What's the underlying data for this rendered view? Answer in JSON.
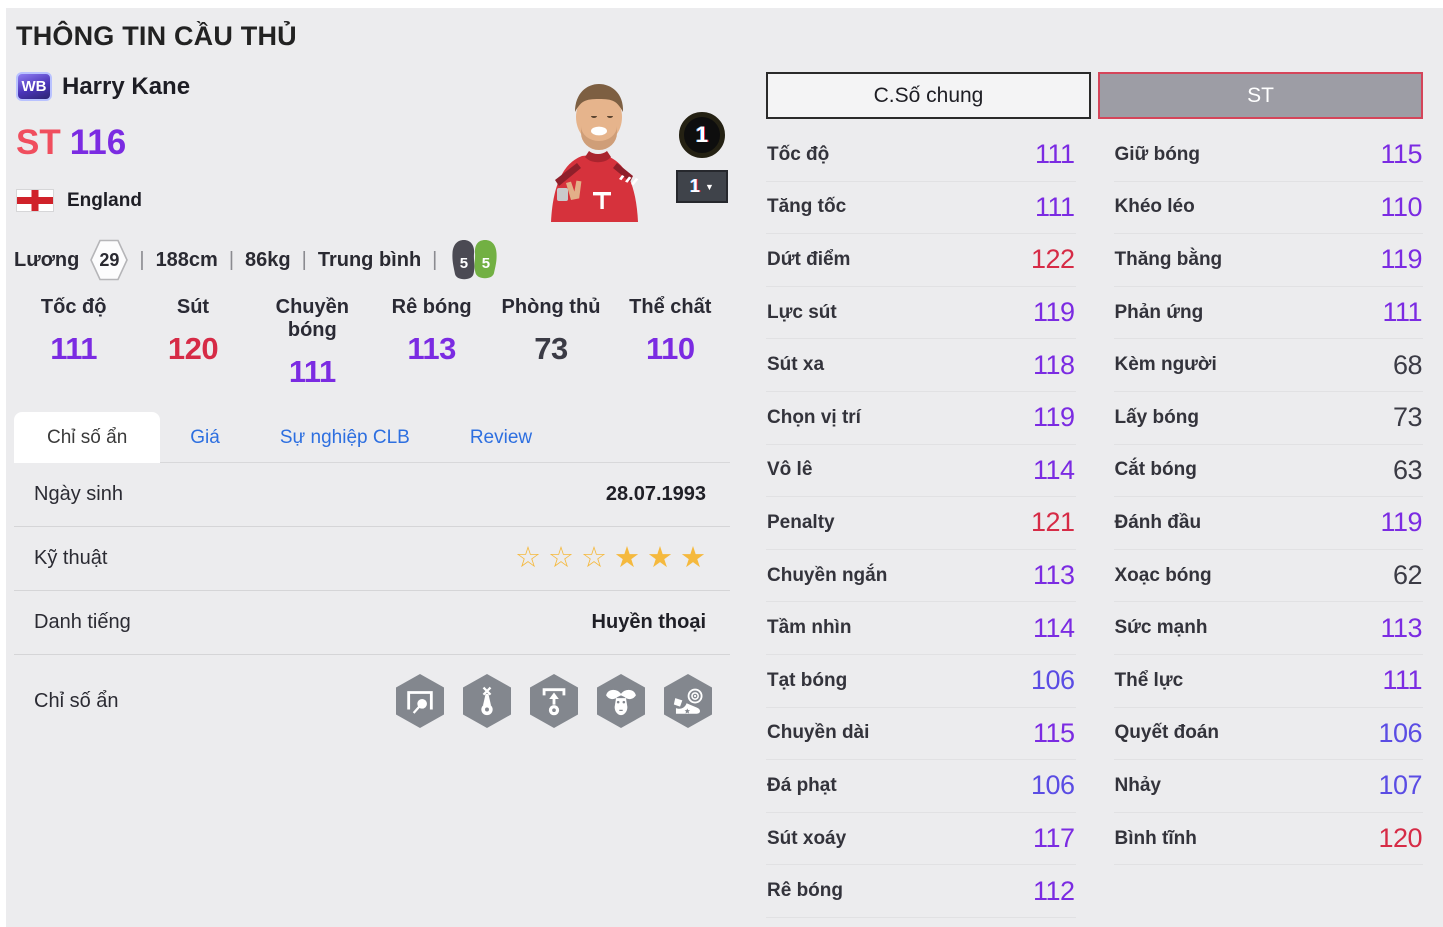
{
  "page": {
    "title": "THÔNG TIN CẦU THỦ"
  },
  "meta": {
    "separator": "|",
    "caret": "▼"
  },
  "colors": {
    "purple": "#7b2be2",
    "blue": "#5a4ce4",
    "red": "#d62b46",
    "dark": "#3b3b45"
  },
  "player": {
    "badge": "WB",
    "name": "Harry Kane",
    "position": "ST",
    "ovr": "116",
    "nation": "England",
    "salary_label": "Lương",
    "salary": "29",
    "height": "188cm",
    "weight": "86kg",
    "body_type": "Trung bình",
    "foot_left": "5",
    "foot_right": "5",
    "level": "1",
    "level_select": "1"
  },
  "summary_stats": [
    {
      "label": "Tốc độ",
      "value": "111",
      "color": "purple"
    },
    {
      "label": "Sút",
      "value": "120",
      "color": "red"
    },
    {
      "label": "Chuyền bóng",
      "value": "111",
      "color": "purple"
    },
    {
      "label": "Rê bóng",
      "value": "113",
      "color": "purple"
    },
    {
      "label": "Phòng thủ",
      "value": "73",
      "color": "dark"
    },
    {
      "label": "Thể chất",
      "value": "110",
      "color": "purple"
    }
  ],
  "tabs": [
    {
      "label": "Chỉ số ẩn",
      "active": true
    },
    {
      "label": "Giá"
    },
    {
      "label": "Sự nghiệp CLB"
    },
    {
      "label": "Review"
    }
  ],
  "info": {
    "dob_label": "Ngày sinh",
    "dob": "28.07.1993",
    "skill_label": "Kỹ thuật",
    "skill_stars": {
      "outline": 3,
      "filled": 3
    },
    "fame_label": "Danh tiếng",
    "fame": "Huyền thoại",
    "hidden_label": "Chỉ số ẩn",
    "hidden_icons": [
      "goal-ball-icon",
      "ball-toss-icon",
      "ball-lift-icon",
      "buffalo-icon",
      "boot-target-icon"
    ]
  },
  "panel": {
    "tab_general": "C.Số chung",
    "tab_position": "ST",
    "left_stats": [
      {
        "label": "Tốc độ",
        "value": "111",
        "color": "purple"
      },
      {
        "label": "Tăng tốc",
        "value": "111",
        "color": "purple"
      },
      {
        "label": "Dứt điểm",
        "value": "122",
        "color": "red"
      },
      {
        "label": "Lực sút",
        "value": "119",
        "color": "purple"
      },
      {
        "label": "Sút xa",
        "value": "118",
        "color": "purple"
      },
      {
        "label": "Chọn vị trí",
        "value": "119",
        "color": "purple"
      },
      {
        "label": "Vô lê",
        "value": "114",
        "color": "purple"
      },
      {
        "label": "Penalty",
        "value": "121",
        "color": "red"
      },
      {
        "label": "Chuyền ngắn",
        "value": "113",
        "color": "purple"
      },
      {
        "label": "Tầm nhìn",
        "value": "114",
        "color": "purple"
      },
      {
        "label": "Tạt bóng",
        "value": "106",
        "color": "blue"
      },
      {
        "label": "Chuyền dài",
        "value": "115",
        "color": "purple"
      },
      {
        "label": "Đá phạt",
        "value": "106",
        "color": "blue"
      },
      {
        "label": "Sút xoáy",
        "value": "117",
        "color": "purple"
      },
      {
        "label": "Rê bóng",
        "value": "112",
        "color": "purple"
      }
    ],
    "right_stats": [
      {
        "label": "Giữ bóng",
        "value": "115",
        "color": "purple"
      },
      {
        "label": "Khéo léo",
        "value": "110",
        "color": "purple"
      },
      {
        "label": "Thăng bằng",
        "value": "119",
        "color": "purple"
      },
      {
        "label": "Phản ứng",
        "value": "111",
        "color": "purple"
      },
      {
        "label": "Kèm người",
        "value": "68",
        "color": "dark"
      },
      {
        "label": "Lấy bóng",
        "value": "73",
        "color": "dark"
      },
      {
        "label": "Cắt bóng",
        "value": "63",
        "color": "dark"
      },
      {
        "label": "Đánh đầu",
        "value": "119",
        "color": "purple"
      },
      {
        "label": "Xoạc bóng",
        "value": "62",
        "color": "dark"
      },
      {
        "label": "Sức mạnh",
        "value": "113",
        "color": "purple"
      },
      {
        "label": "Thể lực",
        "value": "111",
        "color": "purple"
      },
      {
        "label": "Quyết đoán",
        "value": "106",
        "color": "blue"
      },
      {
        "label": "Nhảy",
        "value": "107",
        "color": "blue"
      },
      {
        "label": "Bình tĩnh",
        "value": "120",
        "color": "red"
      }
    ]
  }
}
